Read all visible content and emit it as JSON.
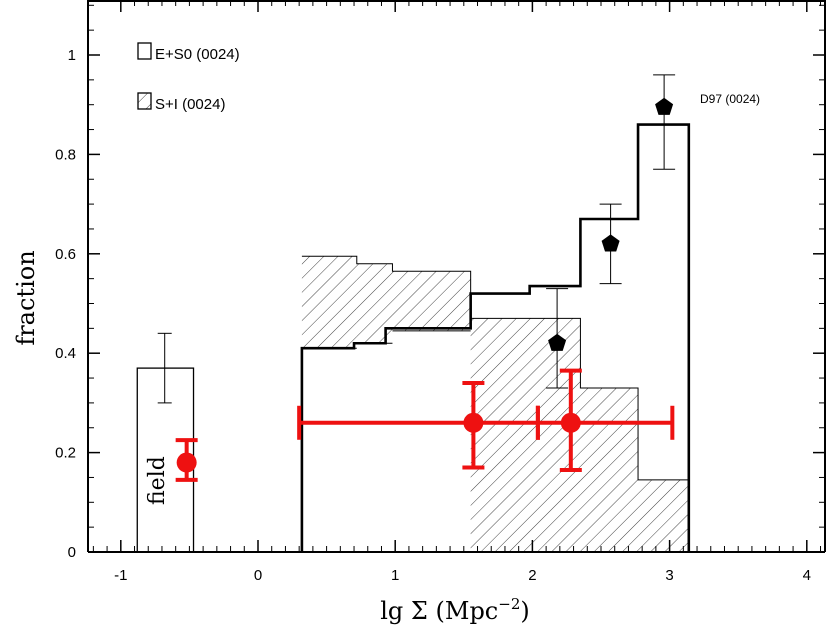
{
  "chart_data": {
    "type": "bar",
    "xlabel": "lg Σ (Mpc",
    "xlabel_sup": "−2",
    "xlabel_close": ")",
    "ylabel": "fraction",
    "xlim": [
      -1.25,
      4.15
    ],
    "ylim": [
      0,
      1.1
    ],
    "xticks": [
      -1,
      0,
      1,
      2,
      3,
      4
    ],
    "yticks": [
      0,
      0.2,
      0.4,
      0.6,
      0.8,
      1
    ],
    "xtick_labels": [
      "-1",
      "0",
      "1",
      "2",
      "3",
      "4"
    ],
    "ytick_labels": [
      "0",
      "0.2",
      "0.4",
      "0.6",
      "0.8",
      "1"
    ],
    "legend": [
      {
        "label": "E+S0 (0024)",
        "style": "open"
      },
      {
        "label": "S+I (0024)",
        "style": "hatched"
      }
    ],
    "annotations": {
      "d97_label": "D97 (0024)",
      "field_label": "field"
    },
    "field_bar": {
      "x0": -0.88,
      "x1": -0.47,
      "value": 0.37
    },
    "field_errorbar": {
      "x": -0.68,
      "y": 0.37,
      "low": 0.3,
      "high": 0.44
    },
    "es0_steps": [
      {
        "x0": 0.32,
        "x1": 0.7,
        "y": 0.41
      },
      {
        "x0": 0.7,
        "x1": 0.93,
        "y": 0.42
      },
      {
        "x0": 0.93,
        "x1": 1.55,
        "y": 0.45
      },
      {
        "x0": 1.55,
        "x1": 1.98,
        "y": 0.52
      },
      {
        "x0": 1.98,
        "x1": 2.35,
        "y": 0.535
      },
      {
        "x0": 2.35,
        "x1": 2.77,
        "y": 0.67
      },
      {
        "x0": 2.77,
        "x1": 3.14,
        "y": 0.86
      }
    ],
    "si_steps": [
      {
        "x0": 0.32,
        "x1": 0.72,
        "lower": 0.41,
        "upper": 0.595
      },
      {
        "x0": 0.72,
        "x1": 0.98,
        "lower": 0.42,
        "upper": 0.58
      },
      {
        "x0": 0.98,
        "x1": 1.55,
        "lower": 0.445,
        "upper": 0.565
      },
      {
        "x0": 1.55,
        "x1": 2.35,
        "lower": 0.0,
        "upper": 0.47
      },
      {
        "x0": 2.35,
        "x1": 2.77,
        "lower": 0.0,
        "upper": 0.33
      },
      {
        "x0": 2.77,
        "x1": 3.14,
        "lower": 0.0,
        "upper": 0.145
      }
    ],
    "d97_points": [
      {
        "x": 2.18,
        "y": 0.42,
        "low": 0.33,
        "high": 0.53
      },
      {
        "x": 2.57,
        "y": 0.62,
        "low": 0.54,
        "high": 0.7
      },
      {
        "x": 2.96,
        "y": 0.895,
        "low": 0.77,
        "high": 0.96
      }
    ],
    "red_points": [
      {
        "x": -0.52,
        "y": 0.18,
        "ylow": 0.145,
        "yhigh": 0.225,
        "xlow": -0.52,
        "xhigh": -0.52
      },
      {
        "x": 1.57,
        "y": 0.26,
        "ylow": 0.17,
        "yhigh": 0.34,
        "xlow": 0.3,
        "xhigh": 2.04
      },
      {
        "x": 2.28,
        "y": 0.26,
        "ylow": 0.165,
        "yhigh": 0.365,
        "xlow": 2.04,
        "xhigh": 3.02
      }
    ],
    "colors": {
      "axes": "#000000",
      "red": "#ee1111",
      "black": "#000000",
      "hatch": "#444444"
    }
  }
}
